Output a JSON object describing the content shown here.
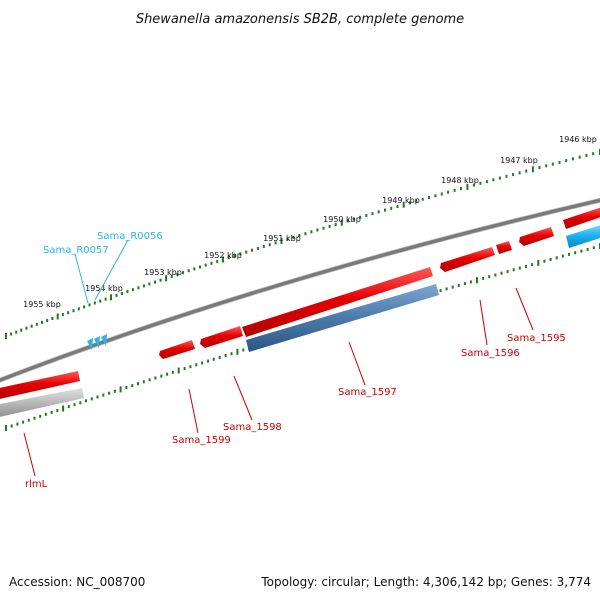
{
  "title": "Shewanella amazonensis SB2B, complete genome",
  "footer": {
    "accession": "Accession: NC_008700",
    "summary": "Topology: circular; Length: 4,306,142 bp; Genes: 3,774"
  },
  "colors": {
    "backbone": "#7a7a7a",
    "gene_red": "#e60000",
    "gene_blue": "#4a7aab",
    "gene_gray": "#b8b8b8",
    "gene_cyan": "#1ab0ee",
    "tick_green": "#1f7a1f",
    "label_red": "#cc0000",
    "label_cyan": "#29b6e6"
  },
  "kbp_labels": [
    "1946 kbp",
    "1947 kbp",
    "1948 kbp",
    "1949 kbp",
    "1950 kbp",
    "1951 kbp",
    "1952 kbp",
    "1953 kbp",
    "1954 kbp",
    "1955 kbp"
  ],
  "gene_labels": {
    "sama_r0056": "Sama_R0056",
    "sama_r0057": "Sama_R0057",
    "sama_1599": "Sama_1599",
    "sama_1598": "Sama_1598",
    "sama_1597": "Sama_1597",
    "sama_1596": "Sama_1596",
    "sama_1595": "Sama_1595",
    "rlml": "rlmL"
  }
}
